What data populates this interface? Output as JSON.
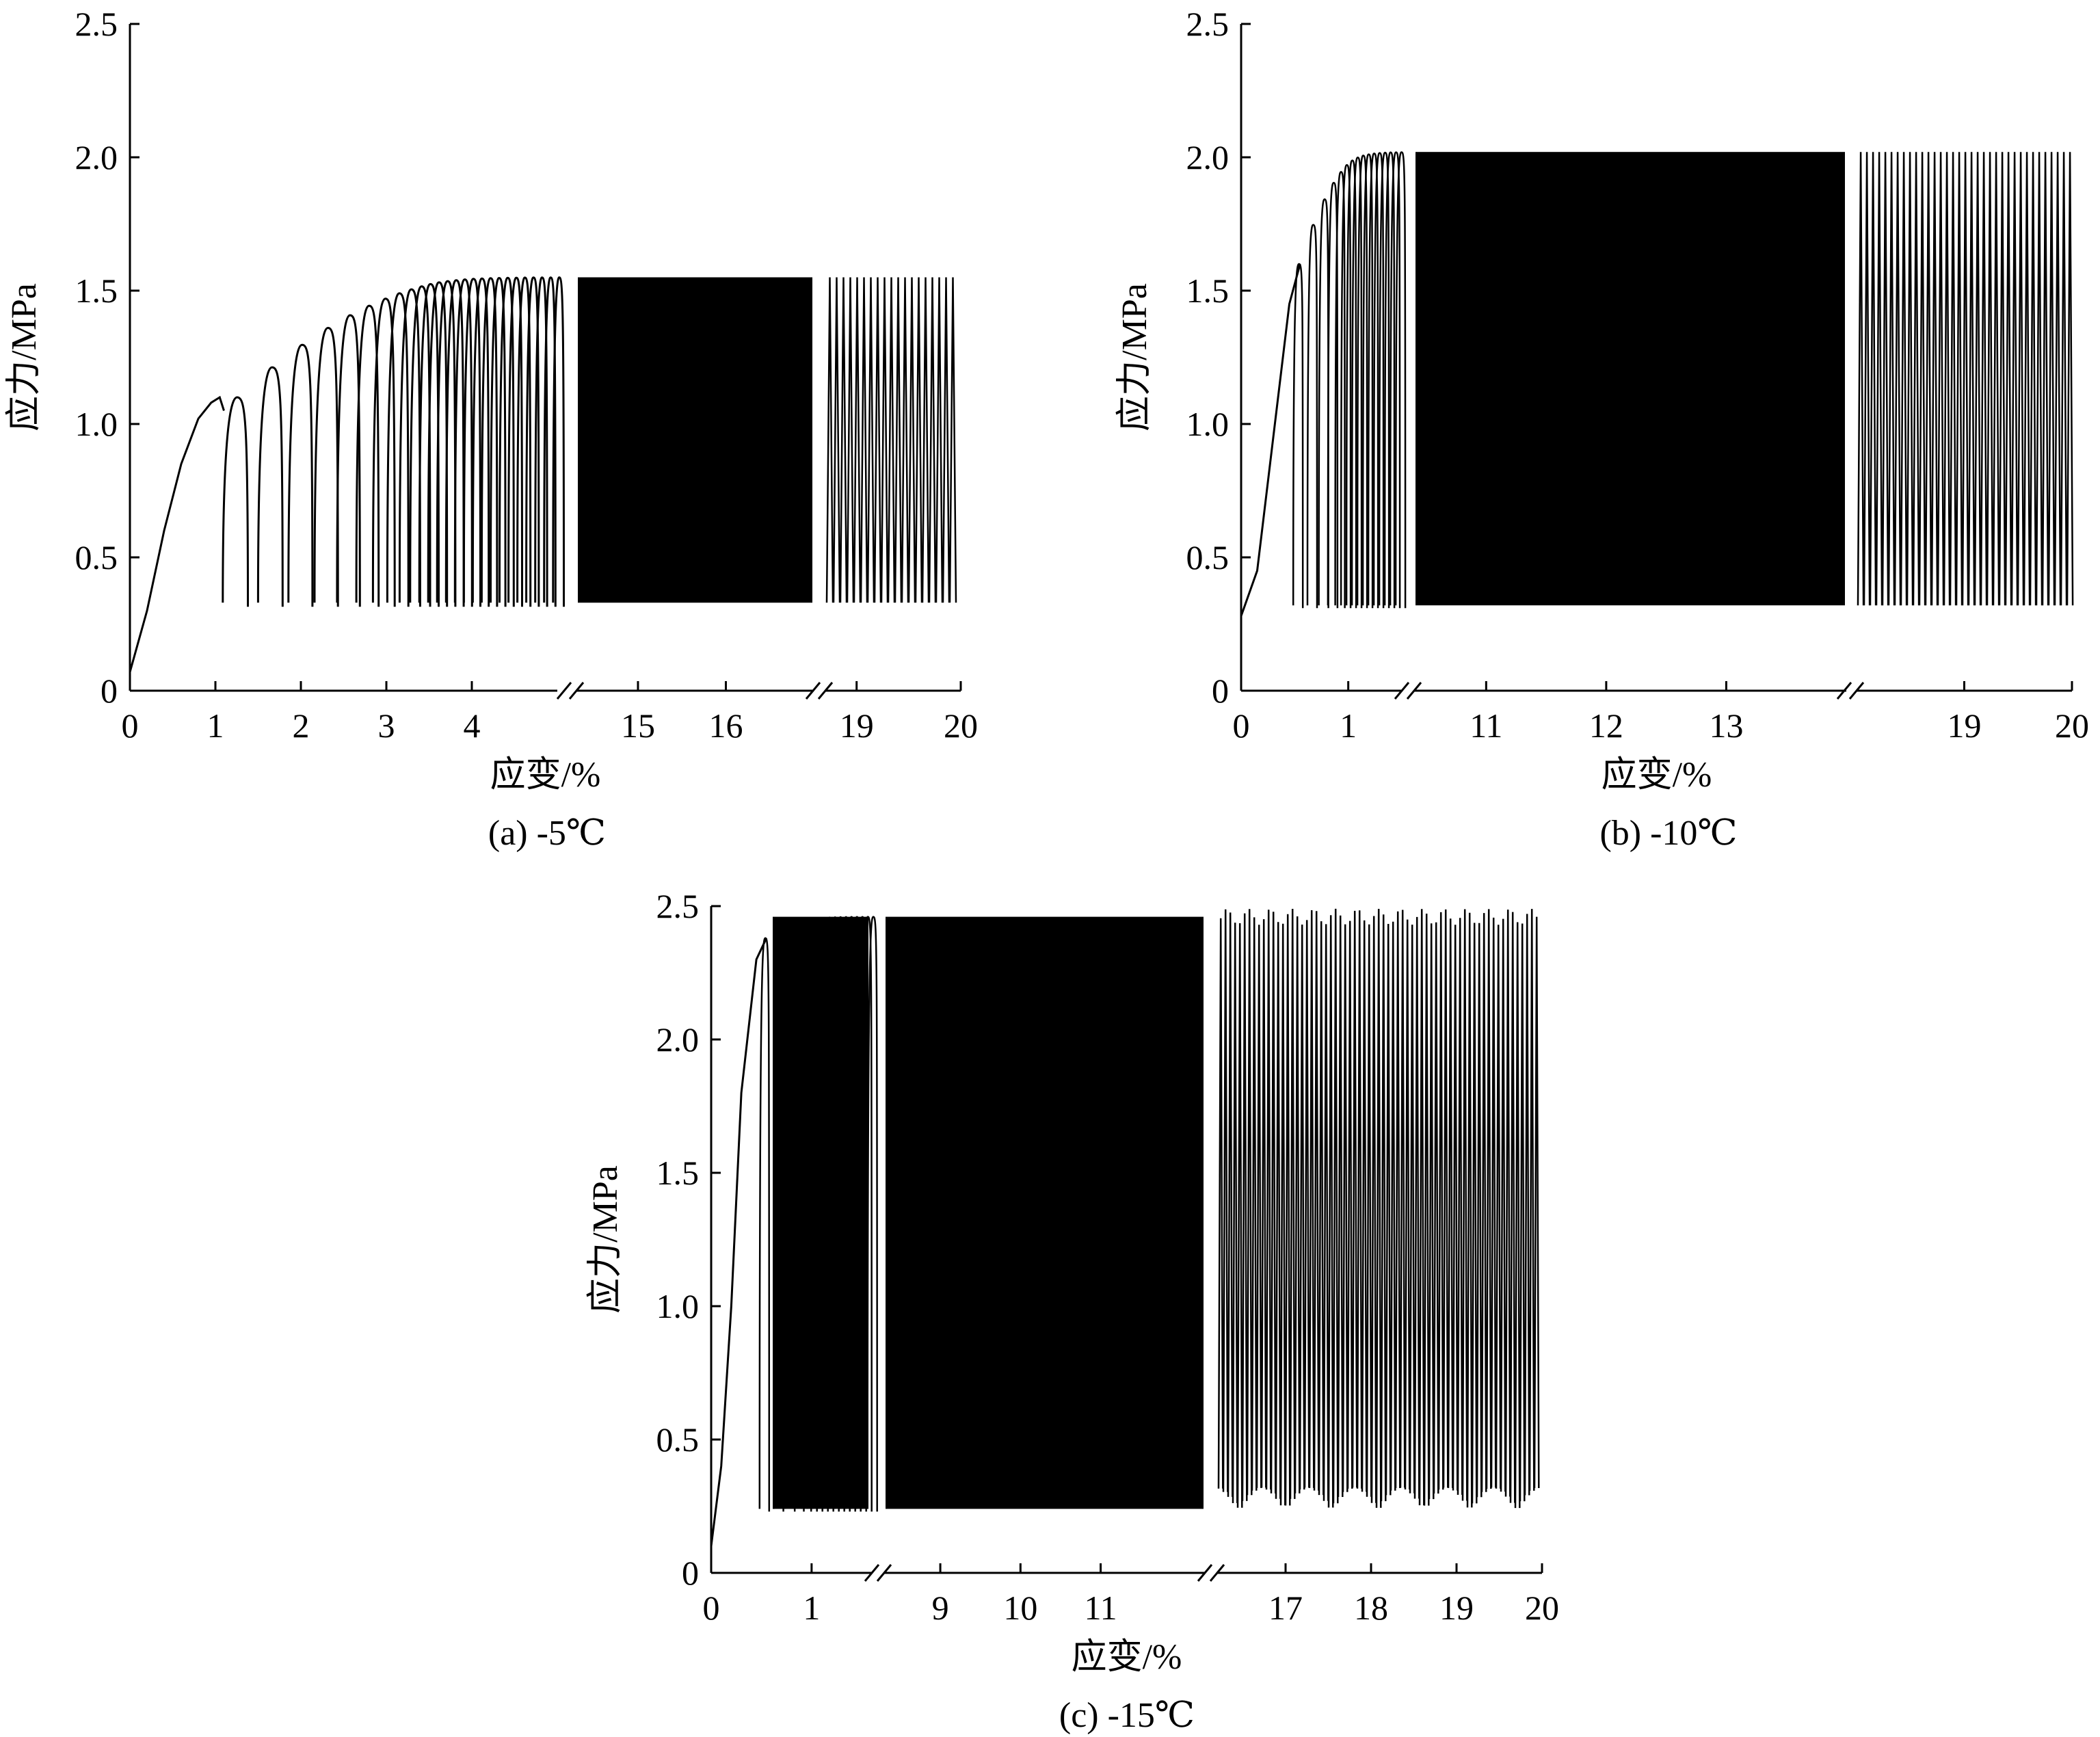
{
  "chart_data": [
    {
      "type": "line",
      "caption": "(a) -5℃",
      "xlabel": "应变/%",
      "ylabel": "应力/MPa",
      "ylim": [
        0,
        2.5
      ],
      "y_ticks": [
        "0",
        "0.5",
        "1.0",
        "1.5",
        "2.0",
        "2.5"
      ],
      "x_broken_axis": true,
      "segments": [
        {
          "xlim": [
            0,
            5.0
          ],
          "ticks": [
            0,
            1,
            2,
            3,
            4
          ],
          "tick_labels": [
            "0",
            "1",
            "2",
            "3",
            "4"
          ]
        },
        {
          "xlim": [
            14.3,
            17.0
          ],
          "ticks": [
            15,
            16
          ],
          "tick_labels": [
            "15",
            "16"
          ]
        },
        {
          "xlim": [
            18.7,
            20
          ],
          "ticks": [
            19,
            20
          ],
          "tick_labels": [
            "19",
            "20"
          ]
        }
      ],
      "initial_curve": {
        "x": [
          0,
          0.2,
          0.4,
          0.6,
          0.8,
          0.95,
          1.05,
          1.1
        ],
        "y": [
          0.07,
          0.3,
          0.6,
          0.85,
          1.02,
          1.08,
          1.1,
          1.05
        ]
      },
      "cycle_min_stress": 0.33,
      "cycle_peak_stress": 1.55
    },
    {
      "type": "line",
      "caption": "(b) -10℃",
      "xlabel": "应变/%",
      "ylabel": "应力/MPa",
      "ylim": [
        0,
        2.5
      ],
      "y_ticks": [
        "0",
        "0.5",
        "1.0",
        "1.5",
        "2.0",
        "2.5"
      ],
      "x_broken_axis": true,
      "segments": [
        {
          "xlim": [
            0,
            1.5
          ],
          "ticks": [
            0,
            1
          ],
          "tick_labels": [
            "0",
            "1"
          ]
        },
        {
          "xlim": [
            10.4,
            14.0
          ],
          "ticks": [
            11,
            12,
            13
          ],
          "tick_labels": [
            "11",
            "12",
            "13"
          ]
        },
        {
          "xlim": [
            18.0,
            20
          ],
          "ticks": [
            19,
            20
          ],
          "tick_labels": [
            "19",
            "20"
          ]
        }
      ],
      "initial_curve": {
        "x": [
          0,
          0.15,
          0.3,
          0.45,
          0.55
        ],
        "y": [
          0.28,
          0.45,
          0.95,
          1.45,
          1.6
        ]
      },
      "cycle_min_stress": 0.32,
      "cycle_peak_stress": 2.02
    },
    {
      "type": "line",
      "caption": "(c) -15℃",
      "xlabel": "应变/%",
      "ylabel": "应力/MPa",
      "ylim": [
        0,
        2.5
      ],
      "y_ticks": [
        "0",
        "0.5",
        "1.0",
        "1.5",
        "2.0",
        "2.5"
      ],
      "x_broken_axis": true,
      "segments": [
        {
          "xlim": [
            0,
            1.6
          ],
          "ticks": [
            0,
            1
          ],
          "tick_labels": [
            "0",
            "1"
          ]
        },
        {
          "xlim": [
            8.3,
            12.3
          ],
          "ticks": [
            9,
            10,
            11
          ],
          "tick_labels": [
            "9",
            "10",
            "11"
          ]
        },
        {
          "xlim": [
            16.2,
            20
          ],
          "ticks": [
            17,
            18,
            19,
            20
          ],
          "tick_labels": [
            "17",
            "18",
            "19",
            "20"
          ]
        }
      ],
      "initial_curve": {
        "x": [
          0,
          0.1,
          0.2,
          0.3,
          0.45,
          0.55
        ],
        "y": [
          0.1,
          0.4,
          1.0,
          1.8,
          2.3,
          2.38
        ]
      },
      "cycle_min_stress": 0.24,
      "cycle_peak_stress": 2.46
    }
  ]
}
